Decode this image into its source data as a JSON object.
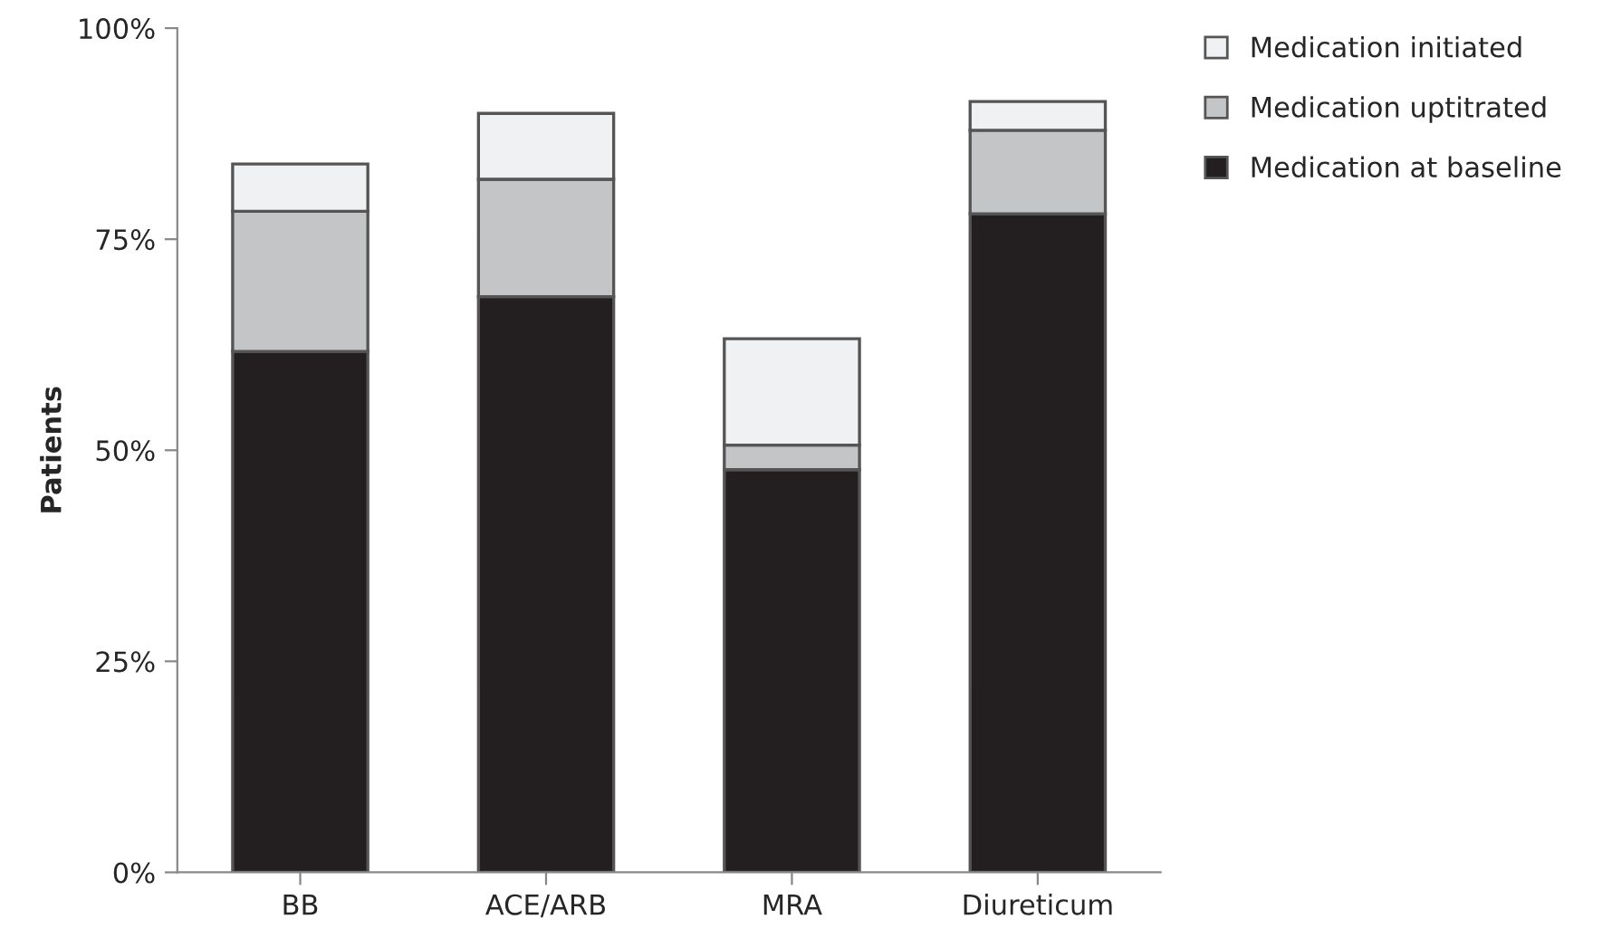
{
  "chart_data": {
    "type": "bar",
    "stacked": true,
    "ylabel": "Patients",
    "categories": [
      "BB",
      "ACE/ARB",
      "MRA",
      "Diureticum"
    ],
    "series": [
      {
        "name": "Medication at baseline",
        "color": "#231f20",
        "values": [
          61.7,
          68.2,
          47.7,
          78.0
        ]
      },
      {
        "name": "Medication uptitrated",
        "color": "#c4c5c7",
        "values": [
          16.6,
          13.9,
          2.9,
          9.9
        ]
      },
      {
        "name": "Medication initiated",
        "color": "#f0f1f2",
        "values": [
          5.6,
          7.8,
          12.6,
          3.4
        ]
      }
    ],
    "ylim": [
      0,
      100
    ],
    "yticks": [
      {
        "value": 0,
        "label": "0%"
      },
      {
        "value": 25,
        "label": "25%"
      },
      {
        "value": 50,
        "label": "50%"
      },
      {
        "value": 75,
        "label": "75%"
      },
      {
        "value": 100,
        "label": "100%"
      }
    ],
    "grid": false,
    "legend": "top right"
  }
}
